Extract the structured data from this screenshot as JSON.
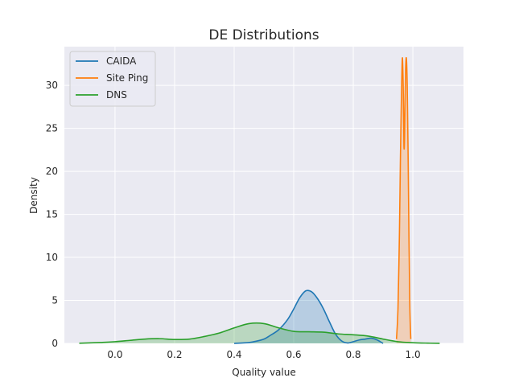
{
  "chart_data": {
    "type": "area",
    "title": "DE Distributions",
    "xlabel": "Quality value",
    "ylabel": "Density",
    "xlim": [
      -0.17,
      1.17
    ],
    "ylim": [
      0,
      34.5
    ],
    "xticks": [
      0.0,
      0.2,
      0.4,
      0.6,
      0.8,
      1.0
    ],
    "xtick_labels": [
      "0.0",
      "0.2",
      "0.4",
      "0.6",
      "0.8",
      "1.0"
    ],
    "yticks": [
      0,
      5,
      10,
      15,
      20,
      25,
      30
    ],
    "ytick_labels": [
      "0",
      "5",
      "10",
      "15",
      "20",
      "25",
      "30"
    ],
    "grid": true,
    "legend": "top-left",
    "series": [
      {
        "name": "CAIDA",
        "color": "#1f77b4",
        "x": [
          0.4,
          0.45,
          0.48,
          0.5,
          0.52,
          0.55,
          0.58,
          0.6,
          0.62,
          0.64,
          0.66,
          0.68,
          0.7,
          0.72,
          0.74,
          0.76,
          0.78,
          0.8,
          0.82,
          0.84,
          0.86,
          0.88,
          0.9
        ],
        "y": [
          0.0,
          0.1,
          0.3,
          0.5,
          0.9,
          1.6,
          2.8,
          4.0,
          5.3,
          6.1,
          6.0,
          5.2,
          4.0,
          2.5,
          1.1,
          0.3,
          0.05,
          0.2,
          0.4,
          0.5,
          0.6,
          0.4,
          0.0
        ]
      },
      {
        "name": "Site Ping",
        "color": "#ff7f0e",
        "x": [
          0.945,
          0.95,
          0.955,
          0.958,
          0.962,
          0.965,
          0.968,
          0.97,
          0.972,
          0.975,
          0.978,
          0.981,
          0.984,
          0.987,
          0.99,
          0.993
        ],
        "y": [
          0.5,
          4.0,
          13.0,
          21.0,
          29.5,
          33.2,
          29.0,
          23.0,
          24.0,
          31.0,
          33.2,
          30.0,
          22.0,
          12.0,
          4.0,
          0.5
        ]
      },
      {
        "name": "DNS",
        "color": "#2ca02c",
        "x": [
          -0.12,
          -0.05,
          0.0,
          0.05,
          0.1,
          0.15,
          0.2,
          0.25,
          0.3,
          0.35,
          0.4,
          0.45,
          0.5,
          0.55,
          0.6,
          0.65,
          0.7,
          0.75,
          0.8,
          0.85,
          0.9,
          0.95,
          1.0,
          1.05,
          1.09
        ],
        "y": [
          0.02,
          0.1,
          0.2,
          0.35,
          0.5,
          0.55,
          0.45,
          0.5,
          0.8,
          1.2,
          1.8,
          2.3,
          2.3,
          1.8,
          1.4,
          1.35,
          1.3,
          1.1,
          1.0,
          0.85,
          0.5,
          0.2,
          0.08,
          0.03,
          0.01
        ]
      }
    ]
  }
}
